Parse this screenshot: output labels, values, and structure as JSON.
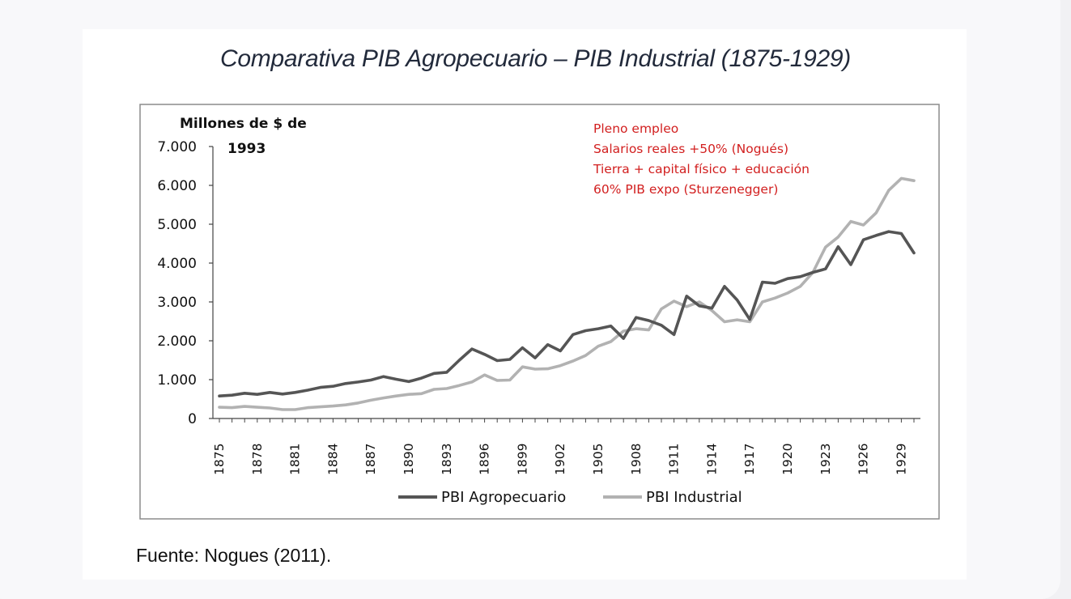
{
  "title": "Comparativa PIB Agropecuario – PIB Industrial (1875-1929)",
  "source": "Fuente: Nogues (2011).",
  "chart_data": {
    "type": "line",
    "ylabel_line1": "Millones de $ de",
    "ylabel_line2": "1993",
    "ylim": [
      0,
      7000
    ],
    "yticks": [
      0,
      1000,
      2000,
      3000,
      4000,
      5000,
      6000,
      7000
    ],
    "ytick_labels": [
      "0",
      "1.000",
      "2.000",
      "3.000",
      "4.000",
      "5.000",
      "6.000",
      "7.000"
    ],
    "xticks": [
      1875,
      1878,
      1881,
      1884,
      1887,
      1890,
      1893,
      1896,
      1899,
      1902,
      1905,
      1908,
      1911,
      1914,
      1917,
      1920,
      1923,
      1926,
      1929
    ],
    "x": [
      1875,
      1876,
      1877,
      1878,
      1879,
      1880,
      1881,
      1882,
      1883,
      1884,
      1885,
      1886,
      1887,
      1888,
      1889,
      1890,
      1891,
      1892,
      1893,
      1894,
      1895,
      1896,
      1897,
      1898,
      1899,
      1900,
      1901,
      1902,
      1903,
      1904,
      1905,
      1906,
      1907,
      1908,
      1909,
      1910,
      1911,
      1912,
      1913,
      1914,
      1915,
      1916,
      1917,
      1918,
      1919,
      1920,
      1921,
      1922,
      1923,
      1924,
      1925,
      1926,
      1927,
      1928,
      1929,
      1930
    ],
    "series": [
      {
        "name": "PBI Agropecuario",
        "color": "#555555",
        "values": [
          580,
          600,
          650,
          620,
          670,
          630,
          670,
          730,
          800,
          830,
          900,
          940,
          990,
          1080,
          1010,
          950,
          1040,
          1160,
          1190,
          1500,
          1790,
          1650,
          1490,
          1520,
          1820,
          1560,
          1900,
          1740,
          2160,
          2260,
          2310,
          2380,
          2060,
          2600,
          2520,
          2400,
          2160,
          3150,
          2900,
          2840,
          3400,
          3050,
          2550,
          3510,
          3480,
          3600,
          3650,
          3760,
          3850,
          4420,
          3960,
          4600,
          4710,
          4810,
          4760,
          4260
        ]
      },
      {
        "name": "PBI Industrial",
        "color": "#b2b2b2",
        "values": [
          290,
          280,
          310,
          290,
          270,
          230,
          230,
          280,
          300,
          320,
          350,
          400,
          470,
          530,
          580,
          620,
          640,
          750,
          770,
          850,
          940,
          1120,
          980,
          990,
          1330,
          1270,
          1280,
          1360,
          1480,
          1620,
          1860,
          1980,
          2250,
          2310,
          2280,
          2820,
          3020,
          2880,
          3000,
          2780,
          2490,
          2540,
          2490,
          3000,
          3100,
          3230,
          3400,
          3760,
          4410,
          4670,
          5070,
          4980,
          5290,
          5870,
          6180,
          6120
        ]
      }
    ],
    "annotations": [
      "Pleno empleo",
      "Salarios reales +50% (Nogués)",
      "Tierra + capital físico + educación",
      "60% PIB expo (Sturzenegger)"
    ],
    "annotation_color": "#d21f1f",
    "legend_position": "bottom"
  }
}
